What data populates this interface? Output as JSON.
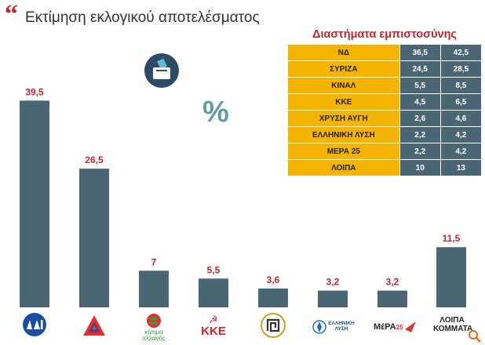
{
  "header": {
    "title": "Εκτίμηση εκλογικού αποτελέσματος",
    "quote_mark": "“",
    "percent_symbol": "%"
  },
  "chart_data": {
    "type": "bar",
    "title": "Εκτίμηση εκλογικού αποτελέσματος",
    "categories": [
      "ΝΔ",
      "ΣΥΡΙΖΑ",
      "ΚΙΝΑΛ",
      "ΚΚΕ",
      "ΧΡΥΣΗ ΑΥΓΗ",
      "ΕΛΛΗΝΙΚΗ ΛΥΣΗ",
      "ΜΕΡΑ 25",
      "ΛΟΙΠΑ ΚΟΜΜΑΤΑ"
    ],
    "values": [
      39.5,
      26.5,
      7,
      5.5,
      3.6,
      3.2,
      3.2,
      11.5
    ],
    "value_labels": [
      "39,5",
      "26,5",
      "7",
      "5,5",
      "3,6",
      "3,2",
      "3,2",
      "11,5"
    ],
    "ylim": [
      0,
      40
    ],
    "grid": false,
    "bar_color": "#4a6675",
    "label_color": "#c0272d"
  },
  "confidence_intervals": {
    "title": "Διαστήματα εμπιστοσύνης",
    "rows": [
      {
        "party": "ΝΔ",
        "low": "36,5",
        "high": "42,5"
      },
      {
        "party": "ΣΥΡΙΖΑ",
        "low": "24,5",
        "high": "28,5"
      },
      {
        "party": "ΚΙΝΑΛ",
        "low": "5,5",
        "high": "8,5"
      },
      {
        "party": "ΚΚΕ",
        "low": "4,5",
        "high": "6,5"
      },
      {
        "party": "ΧΡΥΣΗ ΑΥΓΗ",
        "low": "2,6",
        "high": "4,6"
      },
      {
        "party": "ΕΛΛΗΝΙΚΗ ΛΥΣΗ",
        "low": "2,2",
        "high": "4,2"
      },
      {
        "party": "ΜΕΡΑ 25",
        "low": "2,2",
        "high": "4,2"
      },
      {
        "party": "ΛΟΙΠΑ",
        "low": "10",
        "high": "13"
      }
    ],
    "party_color": "#f4b400",
    "value_color": "#4a6675"
  },
  "logos": {
    "kinal_text1": "κίνημα",
    "kinal_text2": "αλλαγής",
    "kke_text": "ΚΚΕ",
    "elliniki_text1": "ΕΛΛΗΝΙΚΗ",
    "elliniki_text2": "ΛΥΣΗ",
    "mera_text": "ΜέΡΑ",
    "mera_num": "25",
    "loipa_text1": "ΛΟΙΠΑ",
    "loipa_text2": "ΚΟΜΜΑΤΑ"
  },
  "icons": [
    "quote-icon",
    "ballot-box-icon",
    "percent-icon",
    "zoom-icon"
  ]
}
